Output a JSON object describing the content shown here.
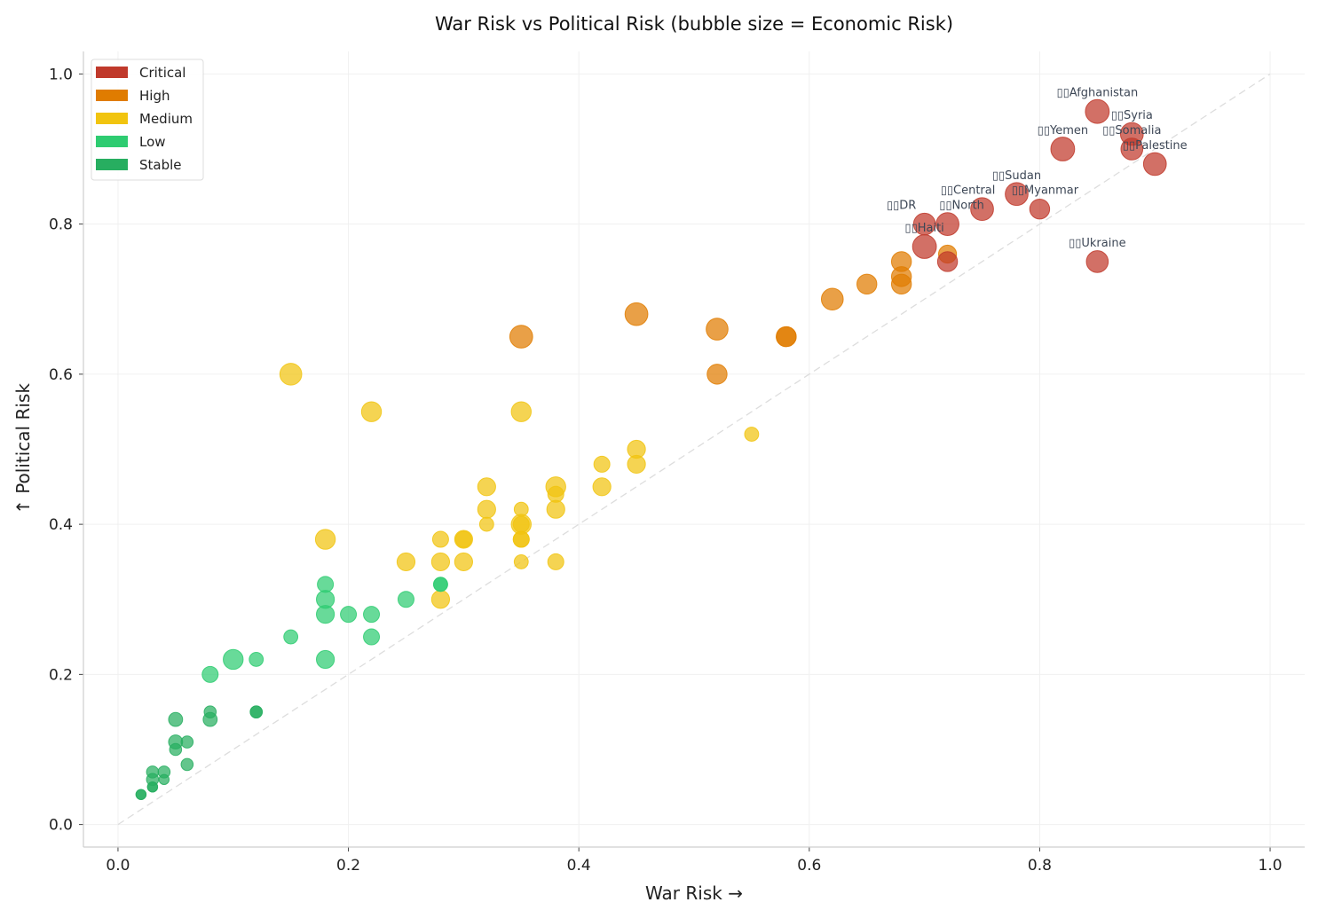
{
  "chart_data": {
    "type": "scatter",
    "title": "War Risk vs Political Risk (bubble size = Economic Risk)",
    "xlabel": "War Risk →",
    "ylabel": "↑ Political Risk",
    "xlim": [
      -0.03,
      1.03
    ],
    "ylim": [
      -0.03,
      1.03
    ],
    "xticks": [
      "0.0",
      "0.2",
      "0.4",
      "0.6",
      "0.8",
      "1.0"
    ],
    "yticks": [
      "0.0",
      "0.2",
      "0.4",
      "0.6",
      "0.8",
      "1.0"
    ],
    "grid": true,
    "reference_line": "y = x (dashed)",
    "legend_position": "top-left",
    "categories": [
      {
        "name": "Critical",
        "color": "#c0392b"
      },
      {
        "name": "High",
        "color": "#e07c00"
      },
      {
        "name": "Medium",
        "color": "#f1c40f"
      },
      {
        "name": "Low",
        "color": "#2ecc71"
      },
      {
        "name": "Stable",
        "color": "#27ae60"
      }
    ],
    "points": [
      {
        "label": "Afghanistan",
        "x": 0.85,
        "y": 0.95,
        "economic": 0.9,
        "cat": "Critical"
      },
      {
        "label": "Syria",
        "x": 0.88,
        "y": 0.92,
        "economic": 0.85,
        "cat": "Critical"
      },
      {
        "label": "Somalia",
        "x": 0.88,
        "y": 0.9,
        "economic": 0.8,
        "cat": "Critical"
      },
      {
        "label": "Palestine",
        "x": 0.9,
        "y": 0.88,
        "economic": 0.85,
        "cat": "Critical"
      },
      {
        "label": "Yemen",
        "x": 0.82,
        "y": 0.9,
        "economic": 0.9,
        "cat": "Critical"
      },
      {
        "label": "Sudan",
        "x": 0.78,
        "y": 0.84,
        "economic": 0.85,
        "cat": "Critical"
      },
      {
        "label": "Myanmar",
        "x": 0.8,
        "y": 0.82,
        "economic": 0.7,
        "cat": "Critical"
      },
      {
        "label": "Central",
        "x": 0.75,
        "y": 0.82,
        "economic": 0.85,
        "cat": "Critical"
      },
      {
        "label": "DR",
        "x": 0.7,
        "y": 0.8,
        "economic": 0.8,
        "cat": "Critical"
      },
      {
        "label": "North",
        "x": 0.72,
        "y": 0.8,
        "economic": 0.85,
        "cat": "Critical"
      },
      {
        "label": "Haiti",
        "x": 0.7,
        "y": 0.77,
        "economic": 0.9,
        "cat": "Critical"
      },
      {
        "label": "Ukraine",
        "x": 0.85,
        "y": 0.75,
        "economic": 0.8,
        "cat": "Critical"
      },
      {
        "x": 0.72,
        "y": 0.76,
        "economic": 0.6,
        "cat": "High"
      },
      {
        "x": 0.72,
        "y": 0.75,
        "economic": 0.7,
        "cat": "Critical"
      },
      {
        "x": 0.35,
        "y": 0.65,
        "economic": 0.85,
        "cat": "High"
      },
      {
        "x": 0.45,
        "y": 0.68,
        "economic": 0.85,
        "cat": "High"
      },
      {
        "x": 0.52,
        "y": 0.66,
        "economic": 0.8,
        "cat": "High"
      },
      {
        "x": 0.52,
        "y": 0.6,
        "economic": 0.7,
        "cat": "High"
      },
      {
        "x": 0.58,
        "y": 0.65,
        "economic": 0.7,
        "cat": "High"
      },
      {
        "x": 0.58,
        "y": 0.65,
        "economic": 0.7,
        "cat": "High"
      },
      {
        "x": 0.62,
        "y": 0.7,
        "economic": 0.8,
        "cat": "High"
      },
      {
        "x": 0.65,
        "y": 0.72,
        "economic": 0.7,
        "cat": "High"
      },
      {
        "x": 0.68,
        "y": 0.75,
        "economic": 0.7,
        "cat": "High"
      },
      {
        "x": 0.68,
        "y": 0.73,
        "economic": 0.7,
        "cat": "High"
      },
      {
        "x": 0.68,
        "y": 0.72,
        "economic": 0.7,
        "cat": "High"
      },
      {
        "x": 0.15,
        "y": 0.6,
        "economic": 0.8,
        "cat": "Medium"
      },
      {
        "x": 0.22,
        "y": 0.55,
        "economic": 0.7,
        "cat": "Medium"
      },
      {
        "x": 0.35,
        "y": 0.55,
        "economic": 0.7,
        "cat": "Medium"
      },
      {
        "x": 0.55,
        "y": 0.52,
        "economic": 0.4,
        "cat": "Medium"
      },
      {
        "x": 0.45,
        "y": 0.5,
        "economic": 0.6,
        "cat": "Medium"
      },
      {
        "x": 0.42,
        "y": 0.48,
        "economic": 0.5,
        "cat": "Medium"
      },
      {
        "x": 0.45,
        "y": 0.48,
        "economic": 0.6,
        "cat": "Medium"
      },
      {
        "x": 0.32,
        "y": 0.45,
        "economic": 0.6,
        "cat": "Medium"
      },
      {
        "x": 0.42,
        "y": 0.45,
        "economic": 0.6,
        "cat": "Medium"
      },
      {
        "x": 0.38,
        "y": 0.45,
        "economic": 0.7,
        "cat": "Medium"
      },
      {
        "x": 0.38,
        "y": 0.44,
        "economic": 0.5,
        "cat": "Medium"
      },
      {
        "x": 0.32,
        "y": 0.42,
        "economic": 0.6,
        "cat": "Medium"
      },
      {
        "x": 0.35,
        "y": 0.42,
        "economic": 0.4,
        "cat": "Medium"
      },
      {
        "x": 0.38,
        "y": 0.42,
        "economic": 0.6,
        "cat": "Medium"
      },
      {
        "x": 0.32,
        "y": 0.4,
        "economic": 0.4,
        "cat": "Medium"
      },
      {
        "x": 0.35,
        "y": 0.4,
        "economic": 0.7,
        "cat": "Medium"
      },
      {
        "x": 0.35,
        "y": 0.4,
        "economic": 0.5,
        "cat": "Medium"
      },
      {
        "x": 0.18,
        "y": 0.38,
        "economic": 0.7,
        "cat": "Medium"
      },
      {
        "x": 0.28,
        "y": 0.38,
        "economic": 0.5,
        "cat": "Medium"
      },
      {
        "x": 0.3,
        "y": 0.38,
        "economic": 0.6,
        "cat": "Medium"
      },
      {
        "x": 0.3,
        "y": 0.38,
        "economic": 0.5,
        "cat": "Medium"
      },
      {
        "x": 0.35,
        "y": 0.38,
        "economic": 0.5,
        "cat": "Medium"
      },
      {
        "x": 0.35,
        "y": 0.38,
        "economic": 0.5,
        "cat": "Medium"
      },
      {
        "x": 0.25,
        "y": 0.35,
        "economic": 0.6,
        "cat": "Medium"
      },
      {
        "x": 0.28,
        "y": 0.35,
        "economic": 0.6,
        "cat": "Medium"
      },
      {
        "x": 0.3,
        "y": 0.35,
        "economic": 0.6,
        "cat": "Medium"
      },
      {
        "x": 0.35,
        "y": 0.35,
        "economic": 0.4,
        "cat": "Medium"
      },
      {
        "x": 0.38,
        "y": 0.35,
        "economic": 0.5,
        "cat": "Medium"
      },
      {
        "x": 0.28,
        "y": 0.3,
        "economic": 0.6,
        "cat": "Medium"
      },
      {
        "x": 0.18,
        "y": 0.32,
        "economic": 0.5,
        "cat": "Low"
      },
      {
        "x": 0.28,
        "y": 0.32,
        "economic": 0.4,
        "cat": "Low"
      },
      {
        "x": 0.28,
        "y": 0.32,
        "economic": 0.4,
        "cat": "Low"
      },
      {
        "x": 0.18,
        "y": 0.3,
        "economic": 0.6,
        "cat": "Low"
      },
      {
        "x": 0.25,
        "y": 0.3,
        "economic": 0.5,
        "cat": "Low"
      },
      {
        "x": 0.18,
        "y": 0.28,
        "economic": 0.6,
        "cat": "Low"
      },
      {
        "x": 0.2,
        "y": 0.28,
        "economic": 0.5,
        "cat": "Low"
      },
      {
        "x": 0.22,
        "y": 0.28,
        "economic": 0.5,
        "cat": "Low"
      },
      {
        "x": 0.15,
        "y": 0.25,
        "economic": 0.4,
        "cat": "Low"
      },
      {
        "x": 0.22,
        "y": 0.25,
        "economic": 0.5,
        "cat": "Low"
      },
      {
        "x": 0.1,
        "y": 0.22,
        "economic": 0.7,
        "cat": "Low"
      },
      {
        "x": 0.12,
        "y": 0.22,
        "economic": 0.4,
        "cat": "Low"
      },
      {
        "x": 0.18,
        "y": 0.22,
        "economic": 0.6,
        "cat": "Low"
      },
      {
        "x": 0.08,
        "y": 0.2,
        "economic": 0.5,
        "cat": "Low"
      },
      {
        "x": 0.12,
        "y": 0.15,
        "economic": 0.3,
        "cat": "Stable"
      },
      {
        "x": 0.12,
        "y": 0.15,
        "economic": 0.3,
        "cat": "Stable"
      },
      {
        "x": 0.08,
        "y": 0.15,
        "economic": 0.3,
        "cat": "Stable"
      },
      {
        "x": 0.08,
        "y": 0.14,
        "economic": 0.4,
        "cat": "Stable"
      },
      {
        "x": 0.05,
        "y": 0.14,
        "economic": 0.4,
        "cat": "Stable"
      },
      {
        "x": 0.05,
        "y": 0.11,
        "economic": 0.4,
        "cat": "Stable"
      },
      {
        "x": 0.06,
        "y": 0.11,
        "economic": 0.3,
        "cat": "Stable"
      },
      {
        "x": 0.05,
        "y": 0.1,
        "economic": 0.3,
        "cat": "Stable"
      },
      {
        "x": 0.06,
        "y": 0.08,
        "economic": 0.3,
        "cat": "Stable"
      },
      {
        "x": 0.03,
        "y": 0.07,
        "economic": 0.3,
        "cat": "Stable"
      },
      {
        "x": 0.04,
        "y": 0.07,
        "economic": 0.3,
        "cat": "Stable"
      },
      {
        "x": 0.03,
        "y": 0.06,
        "economic": 0.3,
        "cat": "Stable"
      },
      {
        "x": 0.04,
        "y": 0.06,
        "economic": 0.2,
        "cat": "Stable"
      },
      {
        "x": 0.03,
        "y": 0.05,
        "economic": 0.2,
        "cat": "Stable"
      },
      {
        "x": 0.03,
        "y": 0.05,
        "economic": 0.2,
        "cat": "Stable"
      },
      {
        "x": 0.02,
        "y": 0.04,
        "economic": 0.2,
        "cat": "Stable"
      },
      {
        "x": 0.02,
        "y": 0.04,
        "economic": 0.2,
        "cat": "Stable"
      }
    ]
  }
}
